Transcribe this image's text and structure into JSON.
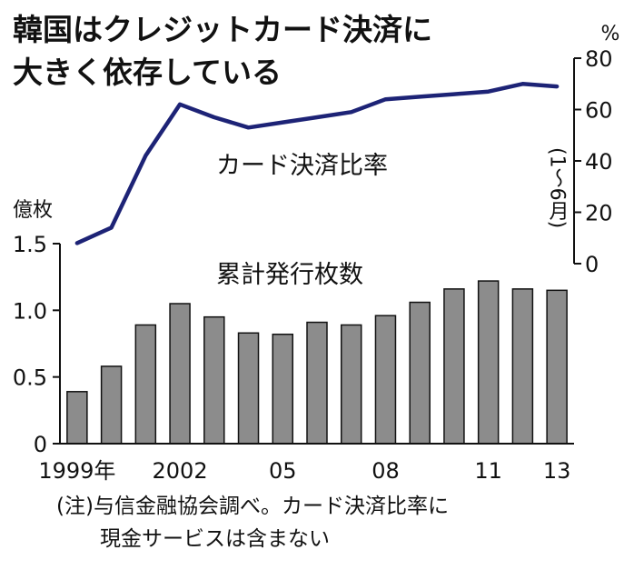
{
  "title_lines": [
    "韓国はクレジットカード決済に",
    "大きく依存している"
  ],
  "note_lines": [
    "(注)与信金融協会調べ。カード決済比率に",
    "現金サービスは含まない"
  ],
  "colors": {
    "bars": "#8c8c8c",
    "line": "#1d2376",
    "text": "#111111"
  },
  "chart_data": {
    "type": "bar+line",
    "x_tick_labels": [
      "1999年",
      "2002",
      "05",
      "08",
      "11",
      "13"
    ],
    "categories": [
      "1999",
      "2000",
      "2001",
      "2002",
      "2003",
      "2004",
      "2005",
      "2006",
      "2007",
      "2008",
      "2009",
      "2010",
      "2011",
      "2012",
      "2013"
    ],
    "bar_series": {
      "name": "累計発行枚数",
      "unit": "億枚",
      "values": [
        0.39,
        0.58,
        0.89,
        1.05,
        0.95,
        0.83,
        0.82,
        0.91,
        0.89,
        0.96,
        1.06,
        1.16,
        1.22,
        1.16,
        1.15
      ],
      "ylim": [
        0,
        1.5
      ],
      "ticks": [
        "0",
        "0.5",
        "1.0",
        "1.5"
      ]
    },
    "line_series": {
      "name": "カード決済比率",
      "unit": "%",
      "values": [
        8,
        14,
        42,
        62,
        57,
        53,
        55,
        57,
        59,
        64,
        65,
        66,
        67,
        70,
        69
      ],
      "ylim": [
        0,
        80
      ],
      "ticks": [
        "0",
        "20",
        "40",
        "60",
        "80"
      ]
    },
    "annotation": "(1〜6月)"
  }
}
